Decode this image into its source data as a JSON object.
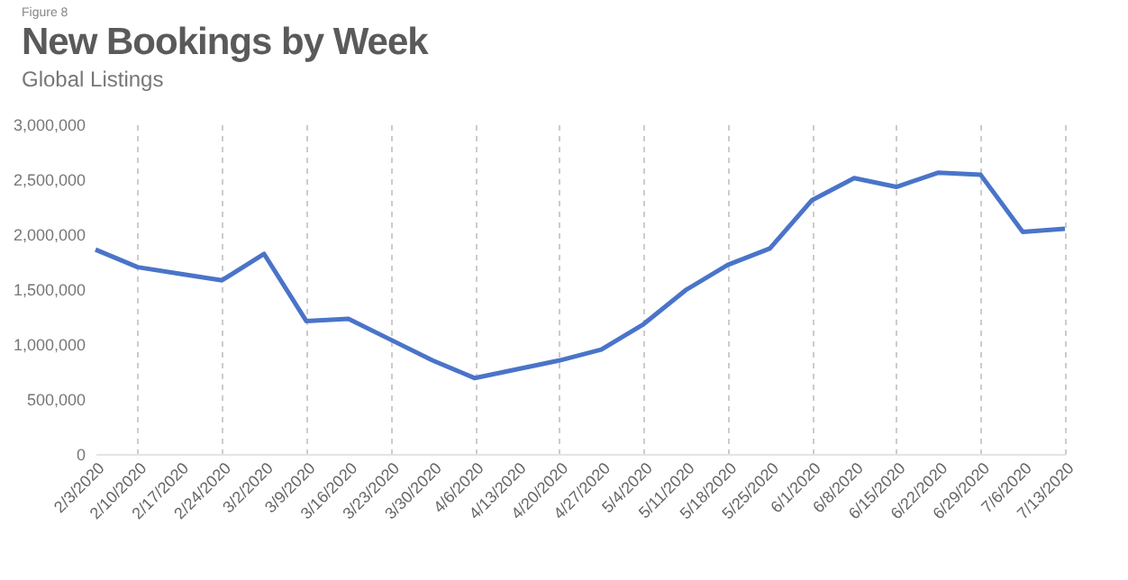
{
  "chart_data": {
    "type": "line",
    "title": "New Bookings by Week",
    "subtitle": "Global Listings",
    "annotations": [
      "Figure 8"
    ],
    "categories": [
      "2/3/2020",
      "2/10/2020",
      "2/17/2020",
      "2/24/2020",
      "3/2/2020",
      "3/9/2020",
      "3/16/2020",
      "3/23/2020",
      "3/30/2020",
      "4/6/2020",
      "4/13/2020",
      "4/20/2020",
      "4/27/2020",
      "5/4/2020",
      "5/11/2020",
      "5/18/2020",
      "5/25/2020",
      "6/1/2020",
      "6/8/2020",
      "6/15/2020",
      "6/22/2020",
      "6/29/2020",
      "7/6/2020",
      "7/13/2020"
    ],
    "series": [
      {
        "color": "#4a74c9",
        "values": [
          1860000,
          1700000,
          1640000,
          1580000,
          1820000,
          1210000,
          1230000,
          1040000,
          850000,
          690000,
          770000,
          850000,
          950000,
          1180000,
          1490000,
          1720000,
          1870000,
          2310000,
          2510000,
          2430000,
          2560000,
          2540000,
          2020000,
          2050000
        ]
      }
    ],
    "ylim": [
      0,
      3000000
    ],
    "yticks": [
      0,
      {
        "value": 500000,
        "label": "500,000"
      },
      {
        "value": 1000000,
        "label": "1,000,000"
      },
      {
        "value": 1500000,
        "label": "1,500,000"
      },
      {
        "value": 2000000,
        "label": "2,000,000"
      },
      {
        "value": 2500000,
        "label": "2,500,000"
      },
      {
        "value": 3000000,
        "label": "3,000,000"
      }
    ],
    "grid": "x",
    "marker": "none",
    "line_style": "solid"
  }
}
